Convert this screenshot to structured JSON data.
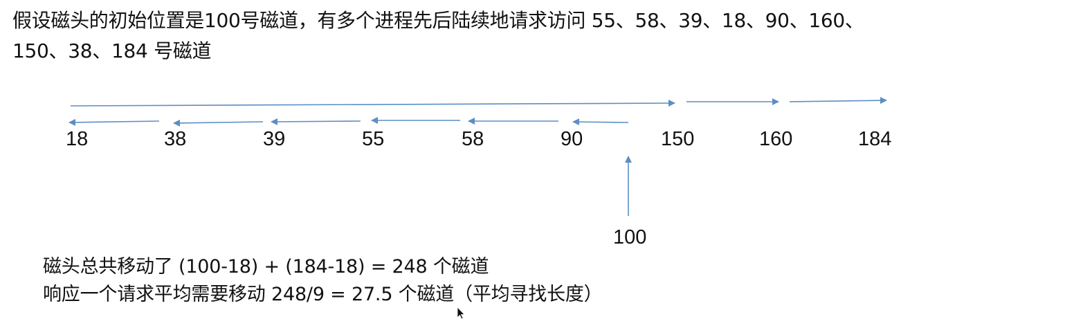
{
  "problem": {
    "line1": "假设磁头的初始位置是100号磁道，有多个进程先后陆续地请求访问 55、58、39、18、90、160、",
    "line2": "150、38、184 号磁道"
  },
  "diagram": {
    "track_labels": [
      "18",
      "38",
      "39",
      "55",
      "58",
      "90",
      "150",
      "160",
      "184"
    ],
    "start_label": "100",
    "arrow_color": "#5b8ec4"
  },
  "summary": {
    "line1": "磁头总共移动了  (100-18) + (184-18) = 248 个磁道",
    "line2": "响应一个请求平均需要移动 248/9 = 27.5 个磁道（平均寻找长度）"
  }
}
